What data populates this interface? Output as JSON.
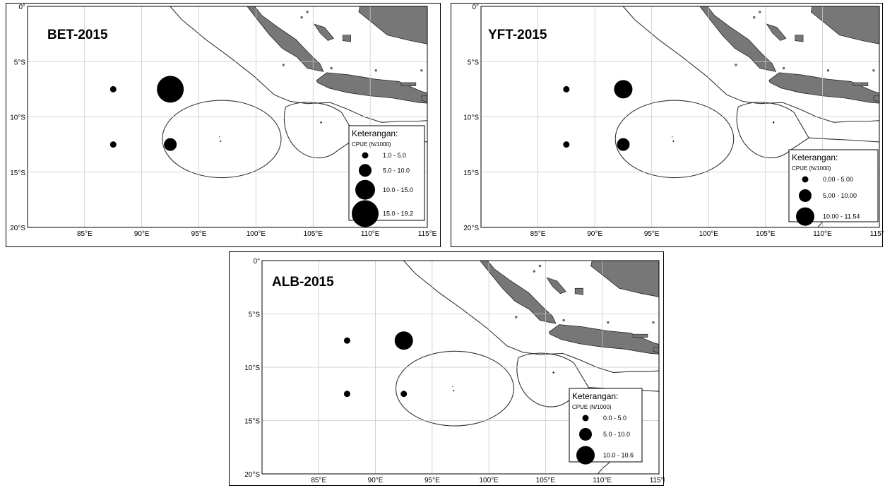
{
  "map": {
    "lon_ticks": [
      85,
      90,
      95,
      100,
      105,
      110,
      115
    ],
    "lat_ticks": [
      0,
      5,
      10,
      15,
      20
    ],
    "lon_unit": "°E",
    "lat_south_unit": "°S",
    "lat_zero_label": "0°",
    "grid": true,
    "land_color": "#777777",
    "dot_color": "#000000"
  },
  "panels": [
    {
      "id": "bet",
      "title": "BET-2015",
      "legend_title": "Keterangan:",
      "legend_subtitle": "CPUE (N/1000)",
      "legend_items": [
        {
          "label": "1.0 - 5.0"
        },
        {
          "label": "5.0 - 10.0"
        },
        {
          "label": "10.0 - 15.0"
        },
        {
          "label": "15.0 - 19.2"
        }
      ],
      "points": [
        {
          "lon": 87.5,
          "lat": -7.5,
          "size_class": 0
        },
        {
          "lon": 92.5,
          "lat": -7.5,
          "size_class": 3
        },
        {
          "lon": 87.5,
          "lat": -12.5,
          "size_class": 0
        },
        {
          "lon": 92.5,
          "lat": -12.5,
          "size_class": 1
        }
      ]
    },
    {
      "id": "yft",
      "title": "YFT-2015",
      "legend_title": "Keterangan:",
      "legend_subtitle": "CPUE (N/1000)",
      "legend_items": [
        {
          "label": "0.00 - 5.00"
        },
        {
          "label": "5.00 - 10.00"
        },
        {
          "label": "10.00 - 11.54"
        }
      ],
      "points": [
        {
          "lon": 87.5,
          "lat": -7.5,
          "size_class": 0
        },
        {
          "lon": 92.5,
          "lat": -7.5,
          "size_class": 2
        },
        {
          "lon": 87.5,
          "lat": -12.5,
          "size_class": 0
        },
        {
          "lon": 92.5,
          "lat": -12.5,
          "size_class": 1
        }
      ]
    },
    {
      "id": "alb",
      "title": "ALB-2015",
      "legend_title": "Keterangan:",
      "legend_subtitle": "CPUE (N/1000)",
      "legend_items": [
        {
          "label": "0.0 - 5.0"
        },
        {
          "label": "5.0 - 10.0"
        },
        {
          "label": "10.0 - 10.6"
        }
      ],
      "points": [
        {
          "lon": 87.5,
          "lat": -7.5,
          "size_class": 0
        },
        {
          "lon": 92.5,
          "lat": -7.5,
          "size_class": 2
        },
        {
          "lon": 87.5,
          "lat": -12.5,
          "size_class": 0
        },
        {
          "lon": 92.5,
          "lat": -12.5,
          "size_class": 0
        }
      ]
    }
  ]
}
